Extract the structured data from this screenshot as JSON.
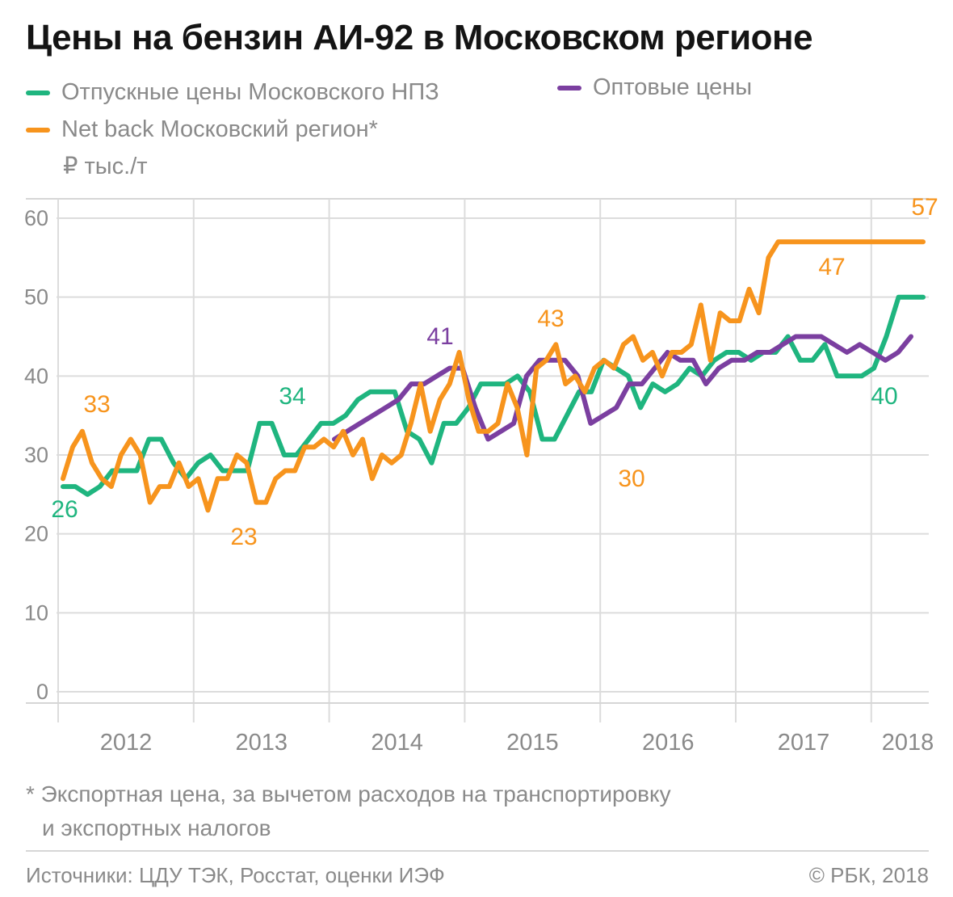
{
  "chart_data": {
    "type": "line",
    "title": "Цены на бензин АИ-92 в Московском регионе",
    "unit_label": "₽ тыс./т",
    "ylim": [
      0,
      60
    ],
    "yticks": [
      0,
      10,
      20,
      30,
      40,
      50,
      60
    ],
    "x_years": [
      "2012",
      "2013",
      "2014",
      "2015",
      "2016",
      "2017",
      "2018"
    ],
    "x_range": [
      2011.6,
      2018.0
    ],
    "colors": {
      "green": "#1fb57f",
      "orange": "#f7941d",
      "purple": "#7b3fa0"
    },
    "series": [
      {
        "name": "Отпускные цены Московского НПЗ",
        "color": "#1fb57f",
        "x": [
          2011.65,
          2011.7,
          2011.75,
          2011.8,
          2011.85,
          2011.95,
          2012.05,
          2012.15,
          2012.25,
          2012.35,
          2012.45,
          2012.55,
          2012.65,
          2012.75,
          2012.85,
          2012.95,
          2013.05,
          2013.15,
          2013.25,
          2013.35,
          2013.4,
          2013.5,
          2013.6,
          2013.7,
          2013.8,
          2013.9,
          2014.0,
          2014.1,
          2014.2,
          2014.25,
          2014.35,
          2014.45,
          2014.55,
          2014.65,
          2014.7,
          2014.75,
          2014.8,
          2014.9,
          2015.0,
          2015.1,
          2015.2,
          2015.3,
          2015.4,
          2015.5,
          2015.6,
          2015.7,
          2015.8,
          2015.9,
          2016.0,
          2016.1,
          2016.2,
          2016.3,
          2016.4,
          2016.5,
          2016.6,
          2016.7,
          2016.8,
          2016.9,
          2017.0,
          2017.1,
          2017.2,
          2017.3,
          2017.4,
          2017.5,
          2017.55,
          2017.6,
          2017.7,
          2017.75,
          2017.85,
          2017.95,
          2018.0
        ],
        "values": [
          26,
          26,
          25,
          26,
          28,
          28,
          28,
          32,
          32,
          29,
          27,
          29,
          30,
          28,
          28,
          28,
          34,
          34,
          30,
          30,
          32,
          34,
          34,
          35,
          37,
          38,
          38,
          38,
          33,
          32,
          29,
          34,
          34,
          36,
          39,
          39,
          39,
          40,
          38,
          32,
          32,
          35,
          38,
          38,
          42,
          41,
          40,
          36,
          39,
          38,
          39,
          41,
          40,
          42,
          43,
          43,
          42,
          43,
          43,
          45,
          42,
          42,
          44,
          40,
          40,
          40,
          41,
          45,
          50,
          50,
          50
        ],
        "labels": [
          {
            "text": "26",
            "x": 2011.65,
            "value": 26,
            "pos": "below"
          },
          {
            "text": "34",
            "x": 2013.1,
            "value": 34,
            "pos": "above"
          },
          {
            "text": "40",
            "x": 2017.6,
            "value": 40,
            "pos": "below"
          }
        ]
      },
      {
        "name": "Оптовые цены",
        "color": "#7b3fa0",
        "x": [
          2013.6,
          2013.7,
          2013.8,
          2013.9,
          2014.0,
          2014.05,
          2014.15,
          2014.25,
          2014.3,
          2014.4,
          2014.45,
          2014.5,
          2014.6,
          2014.7,
          2014.75,
          2014.85,
          2014.95,
          2015.05,
          2015.15,
          2015.25,
          2015.35,
          2015.45,
          2015.55,
          2015.65,
          2015.75,
          2015.85,
          2015.95,
          2016.05,
          2016.15,
          2016.25,
          2016.35,
          2016.45,
          2016.55,
          2016.65,
          2016.75,
          2016.85,
          2016.95,
          2017.05,
          2017.15,
          2017.25,
          2017.35,
          2017.45,
          2017.55,
          2017.65,
          2017.75,
          2017.8
        ],
        "values": [
          32,
          33,
          34,
          35,
          36,
          37,
          39,
          39,
          40,
          41,
          41,
          36,
          32,
          33,
          34,
          40,
          42,
          42,
          42,
          40,
          34,
          35,
          36,
          39,
          39,
          41,
          43,
          42,
          42,
          39,
          41,
          42,
          42,
          43,
          43,
          44,
          45,
          45,
          45,
          44,
          43,
          44,
          43,
          42,
          43,
          45
        ],
        "labels": [
          {
            "text": "41",
            "x": 2014.42,
            "value": 41,
            "pos": "above"
          }
        ]
      },
      {
        "name": "Net back Московский регион*",
        "color": "#f7941d",
        "x": [
          2011.65,
          2011.75,
          2011.85,
          2011.92,
          2012.0,
          2012.08,
          2012.15,
          2012.22,
          2012.3,
          2012.38,
          2012.45,
          2012.55,
          2012.6,
          2012.68,
          2012.75,
          2012.82,
          2012.9,
          2013.0,
          2013.08,
          2013.12,
          2013.2,
          2013.27,
          2013.32,
          2013.38,
          2013.45,
          2013.52,
          2013.6,
          2013.67,
          2013.72,
          2013.8,
          2013.87,
          2013.95,
          2014.0,
          2014.07,
          2014.13,
          2014.2,
          2014.27,
          2014.32,
          2014.4,
          2014.47,
          2014.55,
          2014.62,
          2014.7,
          2014.77,
          2014.82,
          2014.9,
          2014.97,
          2015.05,
          2015.12,
          2015.2,
          2015.27,
          2015.32,
          2015.4,
          2015.47,
          2015.55,
          2015.62,
          2015.7,
          2015.75,
          2015.82,
          2015.9,
          2015.97,
          2016.05,
          2016.12,
          2016.2,
          2016.27,
          2016.35,
          2016.42,
          2016.5,
          2016.57,
          2016.62,
          2016.7,
          2016.77,
          2016.85,
          2016.92,
          2017.0,
          2017.07,
          2017.12,
          2017.2,
          2017.27,
          2017.35,
          2017.42,
          2017.5,
          2017.57,
          2017.62,
          2017.7,
          2017.77,
          2017.82,
          2017.9,
          2017.97,
          2018.0
        ],
        "values": [
          27,
          31,
          33,
          29,
          27,
          26,
          30,
          32,
          30,
          24,
          26,
          26,
          29,
          26,
          27,
          23,
          27,
          27,
          30,
          29,
          24,
          24,
          27,
          28,
          28,
          31,
          31,
          32,
          31,
          33,
          30,
          32,
          27,
          30,
          29,
          30,
          34,
          39,
          33,
          37,
          39,
          43,
          37,
          33,
          33,
          34,
          39,
          36,
          30,
          41,
          42,
          44,
          39,
          40,
          38,
          41,
          42,
          41,
          44,
          45,
          42,
          43,
          40,
          43,
          43,
          44,
          49,
          42,
          48,
          47,
          47,
          51,
          48,
          55,
          57,
          57,
          57,
          57,
          57,
          57,
          57,
          57,
          57,
          57,
          57,
          57,
          57,
          57,
          57,
          57
        ],
        "labels": [
          {
            "text": "33",
            "x": 2011.85,
            "value": 33,
            "pos": "above"
          },
          {
            "text": "23",
            "x": 2012.82,
            "value": 23,
            "pos": "below"
          },
          {
            "text": "43",
            "x": 2014.62,
            "value": 43,
            "pos": "above"
          },
          {
            "text": "30",
            "x": 2015.12,
            "value": 30,
            "pos": "below"
          },
          {
            "text": "47",
            "x": 2016.4,
            "value": 47,
            "pos": "above"
          },
          {
            "text": "57",
            "x": 2016.97,
            "value": 57,
            "pos": "above"
          }
        ]
      }
    ]
  },
  "legend": {
    "green_label": "Отпускные цены Московского НПЗ",
    "purple_label": "Оптовые цены",
    "orange_label": "Net back Московский регион*",
    "unit": "₽ тыс./т"
  },
  "footnote": {
    "line1": "* Экспортная цена, за вычетом расходов на транспортировку",
    "line2": "и экспортных налогов"
  },
  "sources": "Источники: ЦДУ ТЭК, Росстат, оценки ИЭФ",
  "copyright": "© РБК, 2018"
}
